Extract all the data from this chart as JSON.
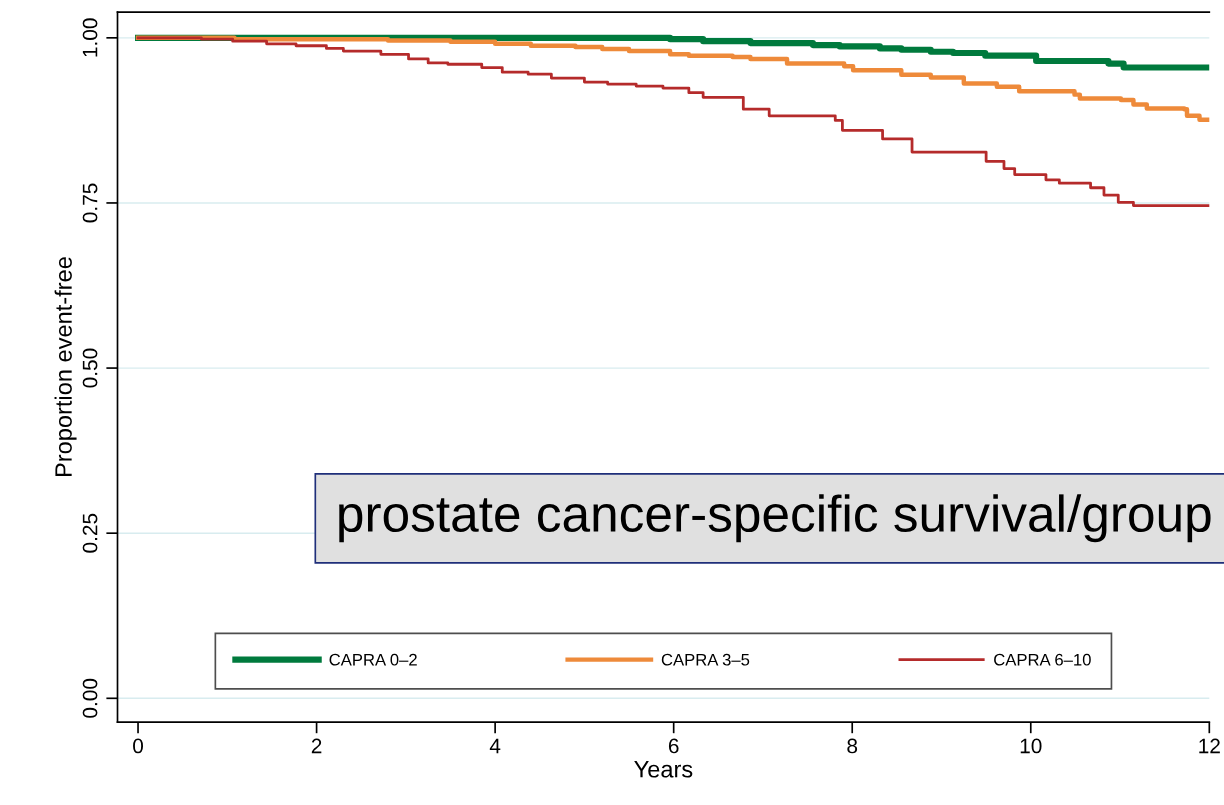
{
  "chart_data": {
    "type": "step",
    "xlabel": "Years",
    "ylabel": "Proportion event-free",
    "annotations": [
      "prostate cancer-specific survival/group"
    ],
    "xlim": [
      -0.23,
      12
    ],
    "xticks": [
      0,
      2,
      4,
      6,
      8,
      10,
      12
    ],
    "ylim": [
      -0.036,
      1.039
    ],
    "yticks": [
      {
        "value": 0,
        "label": "0.00"
      },
      {
        "value": 0.25,
        "label": "0.25"
      },
      {
        "value": 0.5,
        "label": "0.50"
      },
      {
        "value": 0.75,
        "label": "0.75"
      },
      {
        "value": 1,
        "label": "1.00"
      }
    ],
    "grid": "y",
    "legend": "bottom",
    "line_style": "solid",
    "marker": "none",
    "series": [
      {
        "name": "CAPRA 0–2",
        "color": "#007a3d",
        "x": [
          0,
          5.96,
          6.33,
          6.86,
          7.56,
          7.86,
          8.31,
          8.55,
          8.88,
          9.13,
          9.49,
          10.06,
          10.87,
          11.04,
          11.97
        ],
        "values": [
          1.0,
          0.998,
          0.995,
          0.992,
          0.989,
          0.987,
          0.984,
          0.982,
          0.979,
          0.977,
          0.973,
          0.965,
          0.961,
          0.955,
          0.955
        ]
      },
      {
        "name": "CAPRA 3–5",
        "color": "#ee8a3a",
        "x": [
          0,
          1.08,
          2.8,
          3.5,
          4.0,
          4.4,
          4.9,
          5.2,
          5.5,
          5.96,
          6.17,
          6.66,
          6.86,
          7.27,
          7.91,
          8.01,
          8.55,
          8.88,
          9.25,
          9.62,
          9.87,
          10.49,
          10.55,
          11.01,
          11.15,
          11.3,
          11.72,
          11.75,
          11.89,
          12.0
        ],
        "values": [
          1.0,
          0.998,
          0.996,
          0.994,
          0.991,
          0.988,
          0.986,
          0.983,
          0.98,
          0.975,
          0.973,
          0.971,
          0.968,
          0.961,
          0.957,
          0.951,
          0.944,
          0.94,
          0.931,
          0.926,
          0.919,
          0.914,
          0.908,
          0.906,
          0.899,
          0.893,
          0.892,
          0.882,
          0.876,
          0.876
        ]
      },
      {
        "name": "CAPRA 6–10",
        "color": "#b52b2b",
        "x": [
          0,
          0.71,
          1.06,
          1.44,
          1.77,
          2.11,
          2.3,
          2.72,
          3.03,
          3.25,
          3.47,
          3.85,
          4.08,
          4.37,
          4.63,
          5.0,
          5.26,
          5.58,
          5.88,
          6.17,
          6.33,
          6.78,
          7.07,
          7.81,
          7.89,
          8.34,
          8.67,
          9.5,
          9.7,
          9.82,
          10.17,
          10.32,
          10.67,
          10.82,
          10.98,
          11.15,
          12.0
        ],
        "values": [
          1.0,
          0.998,
          0.995,
          0.991,
          0.988,
          0.984,
          0.98,
          0.975,
          0.968,
          0.962,
          0.96,
          0.955,
          0.948,
          0.945,
          0.939,
          0.933,
          0.93,
          0.927,
          0.924,
          0.917,
          0.91,
          0.892,
          0.882,
          0.875,
          0.86,
          0.847,
          0.827,
          0.813,
          0.802,
          0.793,
          0.785,
          0.78,
          0.773,
          0.762,
          0.751,
          0.746,
          0.746
        ]
      }
    ]
  }
}
